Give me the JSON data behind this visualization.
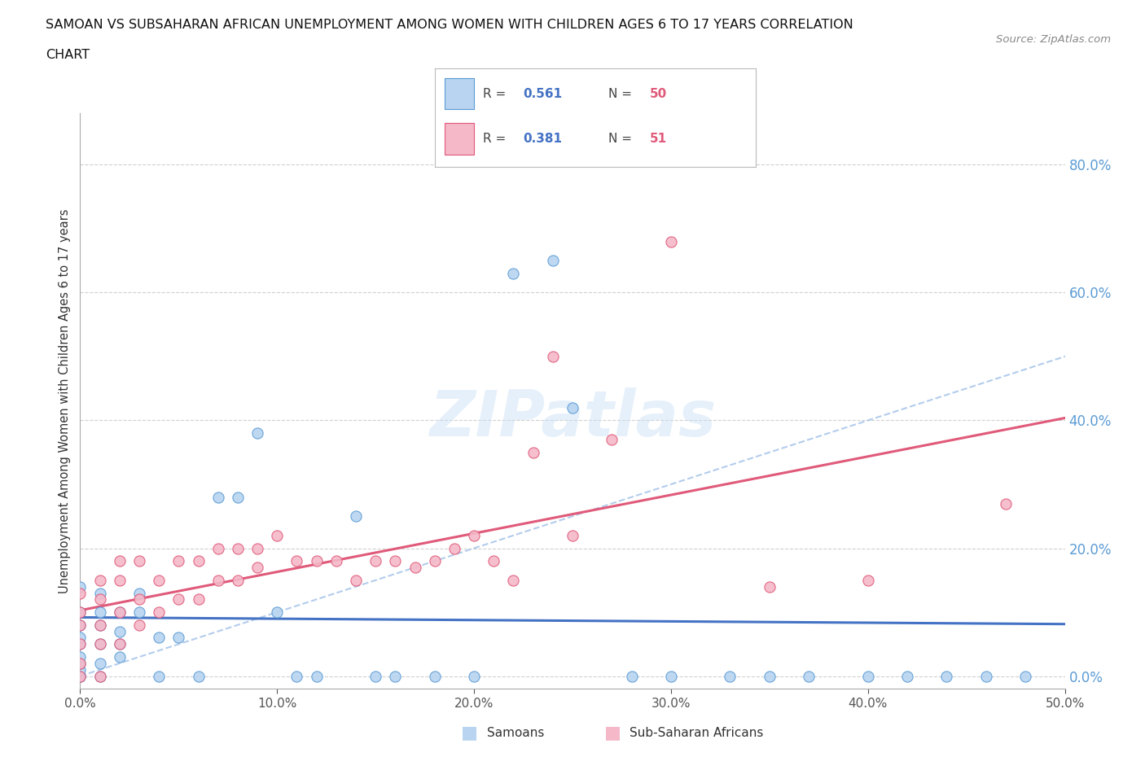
{
  "title_line1": "SAMOAN VS SUBSAHARAN AFRICAN UNEMPLOYMENT AMONG WOMEN WITH CHILDREN AGES 6 TO 17 YEARS CORRELATION",
  "title_line2": "CHART",
  "source": "Source: ZipAtlas.com",
  "ylabel": "Unemployment Among Women with Children Ages 6 to 17 years",
  "xlim": [
    0.0,
    0.5
  ],
  "ylim": [
    -0.02,
    0.88
  ],
  "xticks": [
    0.0,
    0.1,
    0.2,
    0.3,
    0.4,
    0.5
  ],
  "yticks_right": [
    0.0,
    0.2,
    0.4,
    0.6,
    0.8
  ],
  "background_color": "#ffffff",
  "grid_color": "#d0d0d0",
  "samoan_color": "#b8d4f0",
  "samoan_edge_color": "#5b9bd5",
  "subsaharan_color": "#f4b8c8",
  "subsaharan_edge_color": "#e05a7a",
  "samoan_line_color": "#4472c4",
  "subsaharan_line_color": "#e05a7a",
  "diagonal_color": "#a0c0e8",
  "axis_label_color": "#5b9bd5",
  "watermark": "ZIPatlas",
  "samoan_x": [
    0.0,
    0.0,
    0.0,
    0.0,
    0.0,
    0.0,
    0.0,
    0.0,
    0.0,
    0.0,
    0.01,
    0.01,
    0.01,
    0.01,
    0.01,
    0.01,
    0.02,
    0.02,
    0.02,
    0.02,
    0.03,
    0.03,
    0.04,
    0.04,
    0.05,
    0.06,
    0.07,
    0.08,
    0.09,
    0.1,
    0.11,
    0.12,
    0.14,
    0.15,
    0.16,
    0.18,
    0.2,
    0.22,
    0.24,
    0.25,
    0.28,
    0.3,
    0.33,
    0.35,
    0.37,
    0.4,
    0.42,
    0.44,
    0.46,
    0.48
  ],
  "samoan_y": [
    0.0,
    0.0,
    0.01,
    0.02,
    0.03,
    0.05,
    0.06,
    0.08,
    0.1,
    0.14,
    0.0,
    0.02,
    0.05,
    0.08,
    0.1,
    0.13,
    0.03,
    0.05,
    0.07,
    0.1,
    0.1,
    0.13,
    0.0,
    0.06,
    0.06,
    0.0,
    0.28,
    0.28,
    0.38,
    0.1,
    0.0,
    0.0,
    0.25,
    0.0,
    0.0,
    0.0,
    0.0,
    0.63,
    0.65,
    0.42,
    0.0,
    0.0,
    0.0,
    0.0,
    0.0,
    0.0,
    0.0,
    0.0,
    0.0,
    0.0
  ],
  "subsaharan_x": [
    0.0,
    0.0,
    0.0,
    0.0,
    0.0,
    0.0,
    0.01,
    0.01,
    0.01,
    0.01,
    0.01,
    0.02,
    0.02,
    0.02,
    0.02,
    0.03,
    0.03,
    0.03,
    0.04,
    0.04,
    0.05,
    0.05,
    0.06,
    0.06,
    0.07,
    0.07,
    0.08,
    0.08,
    0.09,
    0.09,
    0.1,
    0.11,
    0.12,
    0.13,
    0.14,
    0.15,
    0.16,
    0.17,
    0.18,
    0.19,
    0.2,
    0.21,
    0.22,
    0.23,
    0.24,
    0.25,
    0.27,
    0.3,
    0.35,
    0.4,
    0.47
  ],
  "subsaharan_y": [
    0.0,
    0.02,
    0.05,
    0.08,
    0.1,
    0.13,
    0.0,
    0.05,
    0.08,
    0.12,
    0.15,
    0.05,
    0.1,
    0.15,
    0.18,
    0.08,
    0.12,
    0.18,
    0.1,
    0.15,
    0.12,
    0.18,
    0.12,
    0.18,
    0.15,
    0.2,
    0.15,
    0.2,
    0.17,
    0.2,
    0.22,
    0.18,
    0.18,
    0.18,
    0.15,
    0.18,
    0.18,
    0.17,
    0.18,
    0.2,
    0.22,
    0.18,
    0.15,
    0.35,
    0.5,
    0.22,
    0.37,
    0.68,
    0.14,
    0.15,
    0.27
  ]
}
